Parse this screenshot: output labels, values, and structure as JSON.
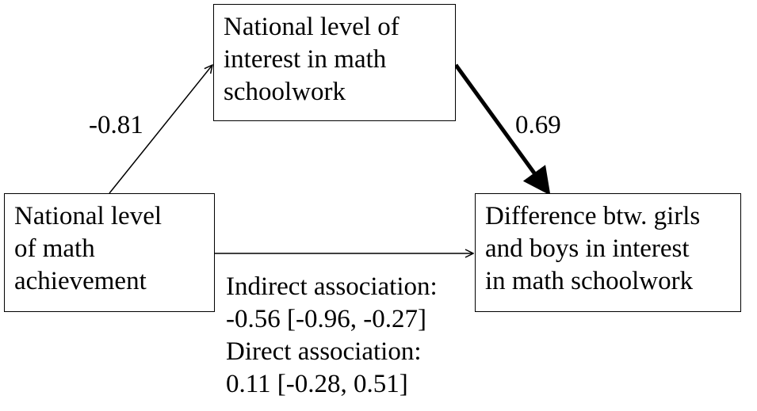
{
  "nodes": {
    "mediator": {
      "lines": [
        "National level of",
        "interest in math",
        "schoolwork"
      ]
    },
    "predictor": {
      "lines": [
        "National level",
        "of math",
        "achievement"
      ]
    },
    "outcome": {
      "lines": [
        "Difference btw. girls",
        "and boys in interest",
        "in math schoolwork"
      ]
    }
  },
  "paths": {
    "a_coefficient": "-0.81",
    "b_coefficient": "0.69"
  },
  "associations": {
    "indirect_label": "Indirect association:",
    "indirect_value": "-0.56 [-0.96, -0.27]",
    "direct_label": "Direct association:",
    "direct_value": "0.11 [-0.28, 0.51]"
  }
}
